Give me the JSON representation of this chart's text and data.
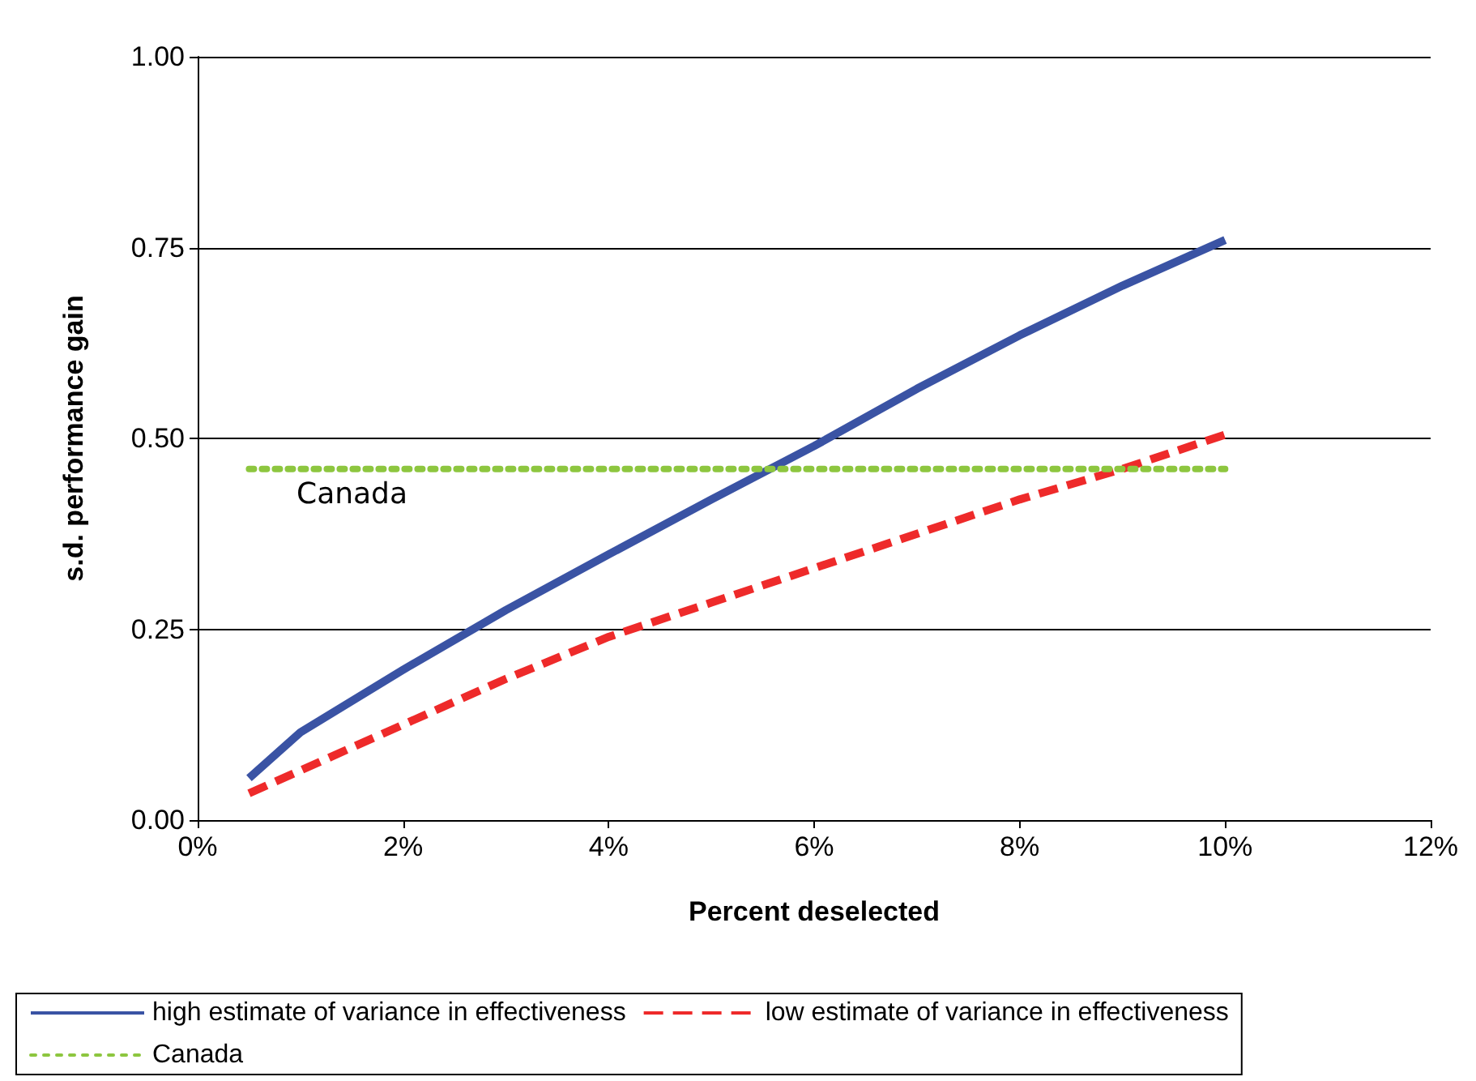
{
  "chart_data": {
    "type": "line",
    "xlabel": "Percent deselected",
    "ylabel": "s.d. performance gain",
    "x": [
      0.5,
      1,
      2,
      3,
      4,
      5,
      6,
      7,
      8,
      9,
      10
    ],
    "series": [
      {
        "name": "high estimate of variance in effectiveness",
        "color": "#3a53a4",
        "line_style": "solid",
        "values": [
          0.055,
          0.115,
          0.197,
          0.275,
          0.348,
          0.42,
          0.49,
          0.565,
          0.635,
          0.7,
          0.76
        ]
      },
      {
        "name": "low estimate of variance in effectiveness",
        "color": "#ee2a2a",
        "line_style": "dashed",
        "values": [
          0.035,
          0.065,
          0.125,
          0.185,
          0.24,
          0.285,
          0.33,
          0.375,
          0.42,
          0.46,
          0.505
        ]
      },
      {
        "name": "Canada",
        "color": "#8dc63f",
        "line_style": "dotted",
        "values": [
          0.46,
          0.46,
          0.46,
          0.46,
          0.46,
          0.46,
          0.46,
          0.46,
          0.46,
          0.46,
          0.46
        ]
      }
    ],
    "annotations": [
      "Canada"
    ],
    "xlim": [
      0,
      12
    ],
    "xticks": [
      {
        "value": 0,
        "label": "0%"
      },
      {
        "value": 2,
        "label": "2%"
      },
      {
        "value": 4,
        "label": "4%"
      },
      {
        "value": 6,
        "label": "6%"
      },
      {
        "value": 8,
        "label": "8%"
      },
      {
        "value": 10,
        "label": "10%"
      },
      {
        "value": 12,
        "label": "12%"
      }
    ],
    "ylim": [
      0,
      1
    ],
    "yticks": [
      {
        "value": 0,
        "label": "0.00"
      },
      {
        "value": 0.25,
        "label": "0.25"
      },
      {
        "value": 0.5,
        "label": "0.50"
      },
      {
        "value": 0.75,
        "label": "0.75"
      },
      {
        "value": 1,
        "label": "1.00"
      }
    ],
    "grid": "y",
    "legend": "bottom",
    "marker": "none"
  }
}
